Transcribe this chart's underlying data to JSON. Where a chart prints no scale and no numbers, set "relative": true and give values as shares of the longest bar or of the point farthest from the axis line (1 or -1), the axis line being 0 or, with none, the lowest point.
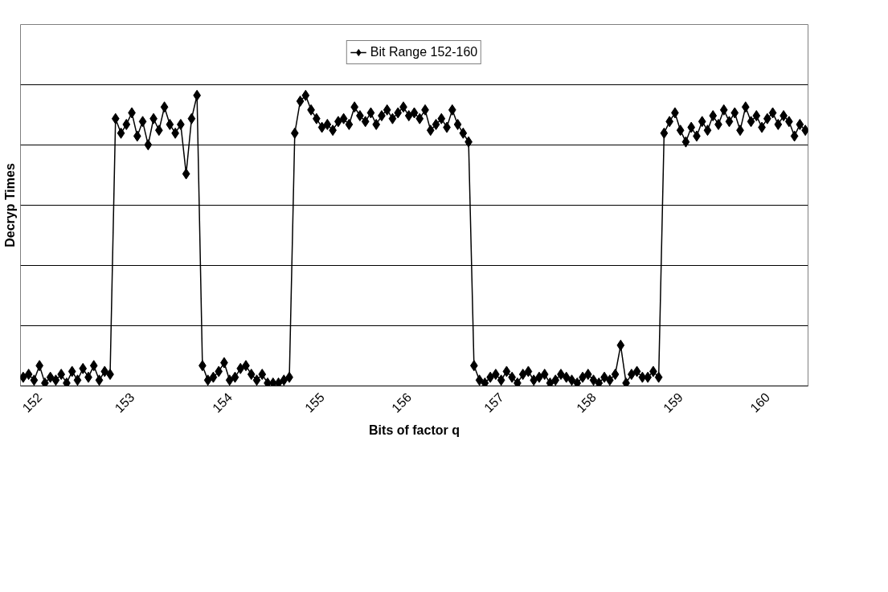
{
  "chart_data": {
    "type": "line",
    "xlabel": "Bits of factor q",
    "ylabel": "Decryp Times",
    "relative": true,
    "marker": "diamond",
    "grid": "y",
    "legend": "top",
    "categories": [
      null,
      null,
      null,
      "152",
      null,
      null,
      null,
      null,
      null,
      null,
      null,
      null,
      null,
      null,
      null,
      null,
      null,
      null,
      null,
      null,
      "153",
      null,
      null,
      null,
      null,
      null,
      null,
      null,
      null,
      null,
      null,
      null,
      null,
      null,
      null,
      null,
      null,
      null,
      "154",
      null,
      null,
      null,
      null,
      null,
      null,
      null,
      null,
      null,
      null,
      null,
      null,
      null,
      null,
      null,
      null,
      "155",
      null,
      null,
      null,
      null,
      null,
      null,
      null,
      null,
      null,
      null,
      null,
      null,
      null,
      null,
      null,
      "156",
      null,
      null,
      null,
      null,
      null,
      null,
      null,
      null,
      null,
      null,
      null,
      null,
      null,
      null,
      null,
      null,
      "157",
      null,
      null,
      null,
      null,
      null,
      null,
      null,
      null,
      null,
      null,
      null,
      null,
      null,
      null,
      null,
      null,
      "158",
      null,
      null,
      null,
      null,
      null,
      null,
      null,
      null,
      null,
      null,
      null,
      null,
      null,
      null,
      null,
      "159",
      null,
      null,
      null,
      null,
      null,
      null,
      null,
      null,
      null,
      null,
      null,
      null,
      null,
      null,
      null,
      "160",
      null,
      null,
      null,
      null,
      null,
      null,
      null
    ],
    "series": [
      {
        "name": "Bit Range 152-160",
        "color": "#000000",
        "values": [
          0.03,
          0.04,
          0.02,
          0.07,
          0.01,
          0.03,
          0.02,
          0.04,
          0.01,
          0.05,
          0.02,
          0.06,
          0.03,
          0.07,
          0.02,
          0.05,
          0.04,
          0.92,
          0.87,
          0.9,
          0.94,
          0.86,
          0.91,
          0.83,
          0.92,
          0.88,
          0.96,
          0.9,
          0.87,
          0.9,
          0.73,
          0.92,
          1.0,
          0.07,
          0.02,
          0.03,
          0.05,
          0.08,
          0.02,
          0.03,
          0.06,
          0.07,
          0.04,
          0.02,
          0.04,
          0.01,
          0.01,
          0.01,
          0.02,
          0.03,
          0.87,
          0.98,
          1.0,
          0.95,
          0.92,
          0.89,
          0.9,
          0.88,
          0.91,
          0.92,
          0.9,
          0.96,
          0.93,
          0.91,
          0.94,
          0.9,
          0.93,
          0.95,
          0.92,
          0.94,
          0.96,
          0.93,
          0.94,
          0.92,
          0.95,
          0.88,
          0.9,
          0.92,
          0.89,
          0.95,
          0.9,
          0.87,
          0.84,
          0.07,
          0.02,
          0.01,
          0.03,
          0.04,
          0.02,
          0.05,
          0.03,
          0.01,
          0.04,
          0.05,
          0.02,
          0.03,
          0.04,
          0.01,
          0.02,
          0.04,
          0.03,
          0.02,
          0.01,
          0.03,
          0.04,
          0.02,
          0.01,
          0.03,
          0.02,
          0.04,
          0.14,
          0.01,
          0.04,
          0.05,
          0.03,
          0.03,
          0.05,
          0.03,
          0.87,
          0.91,
          0.94,
          0.88,
          0.84,
          0.89,
          0.86,
          0.91,
          0.88,
          0.93,
          0.9,
          0.95,
          0.91,
          0.94,
          0.88,
          0.96,
          0.91,
          0.93,
          0.89,
          0.92,
          0.94,
          0.9,
          0.93,
          0.91,
          0.86,
          0.9,
          0.88
        ]
      }
    ]
  }
}
